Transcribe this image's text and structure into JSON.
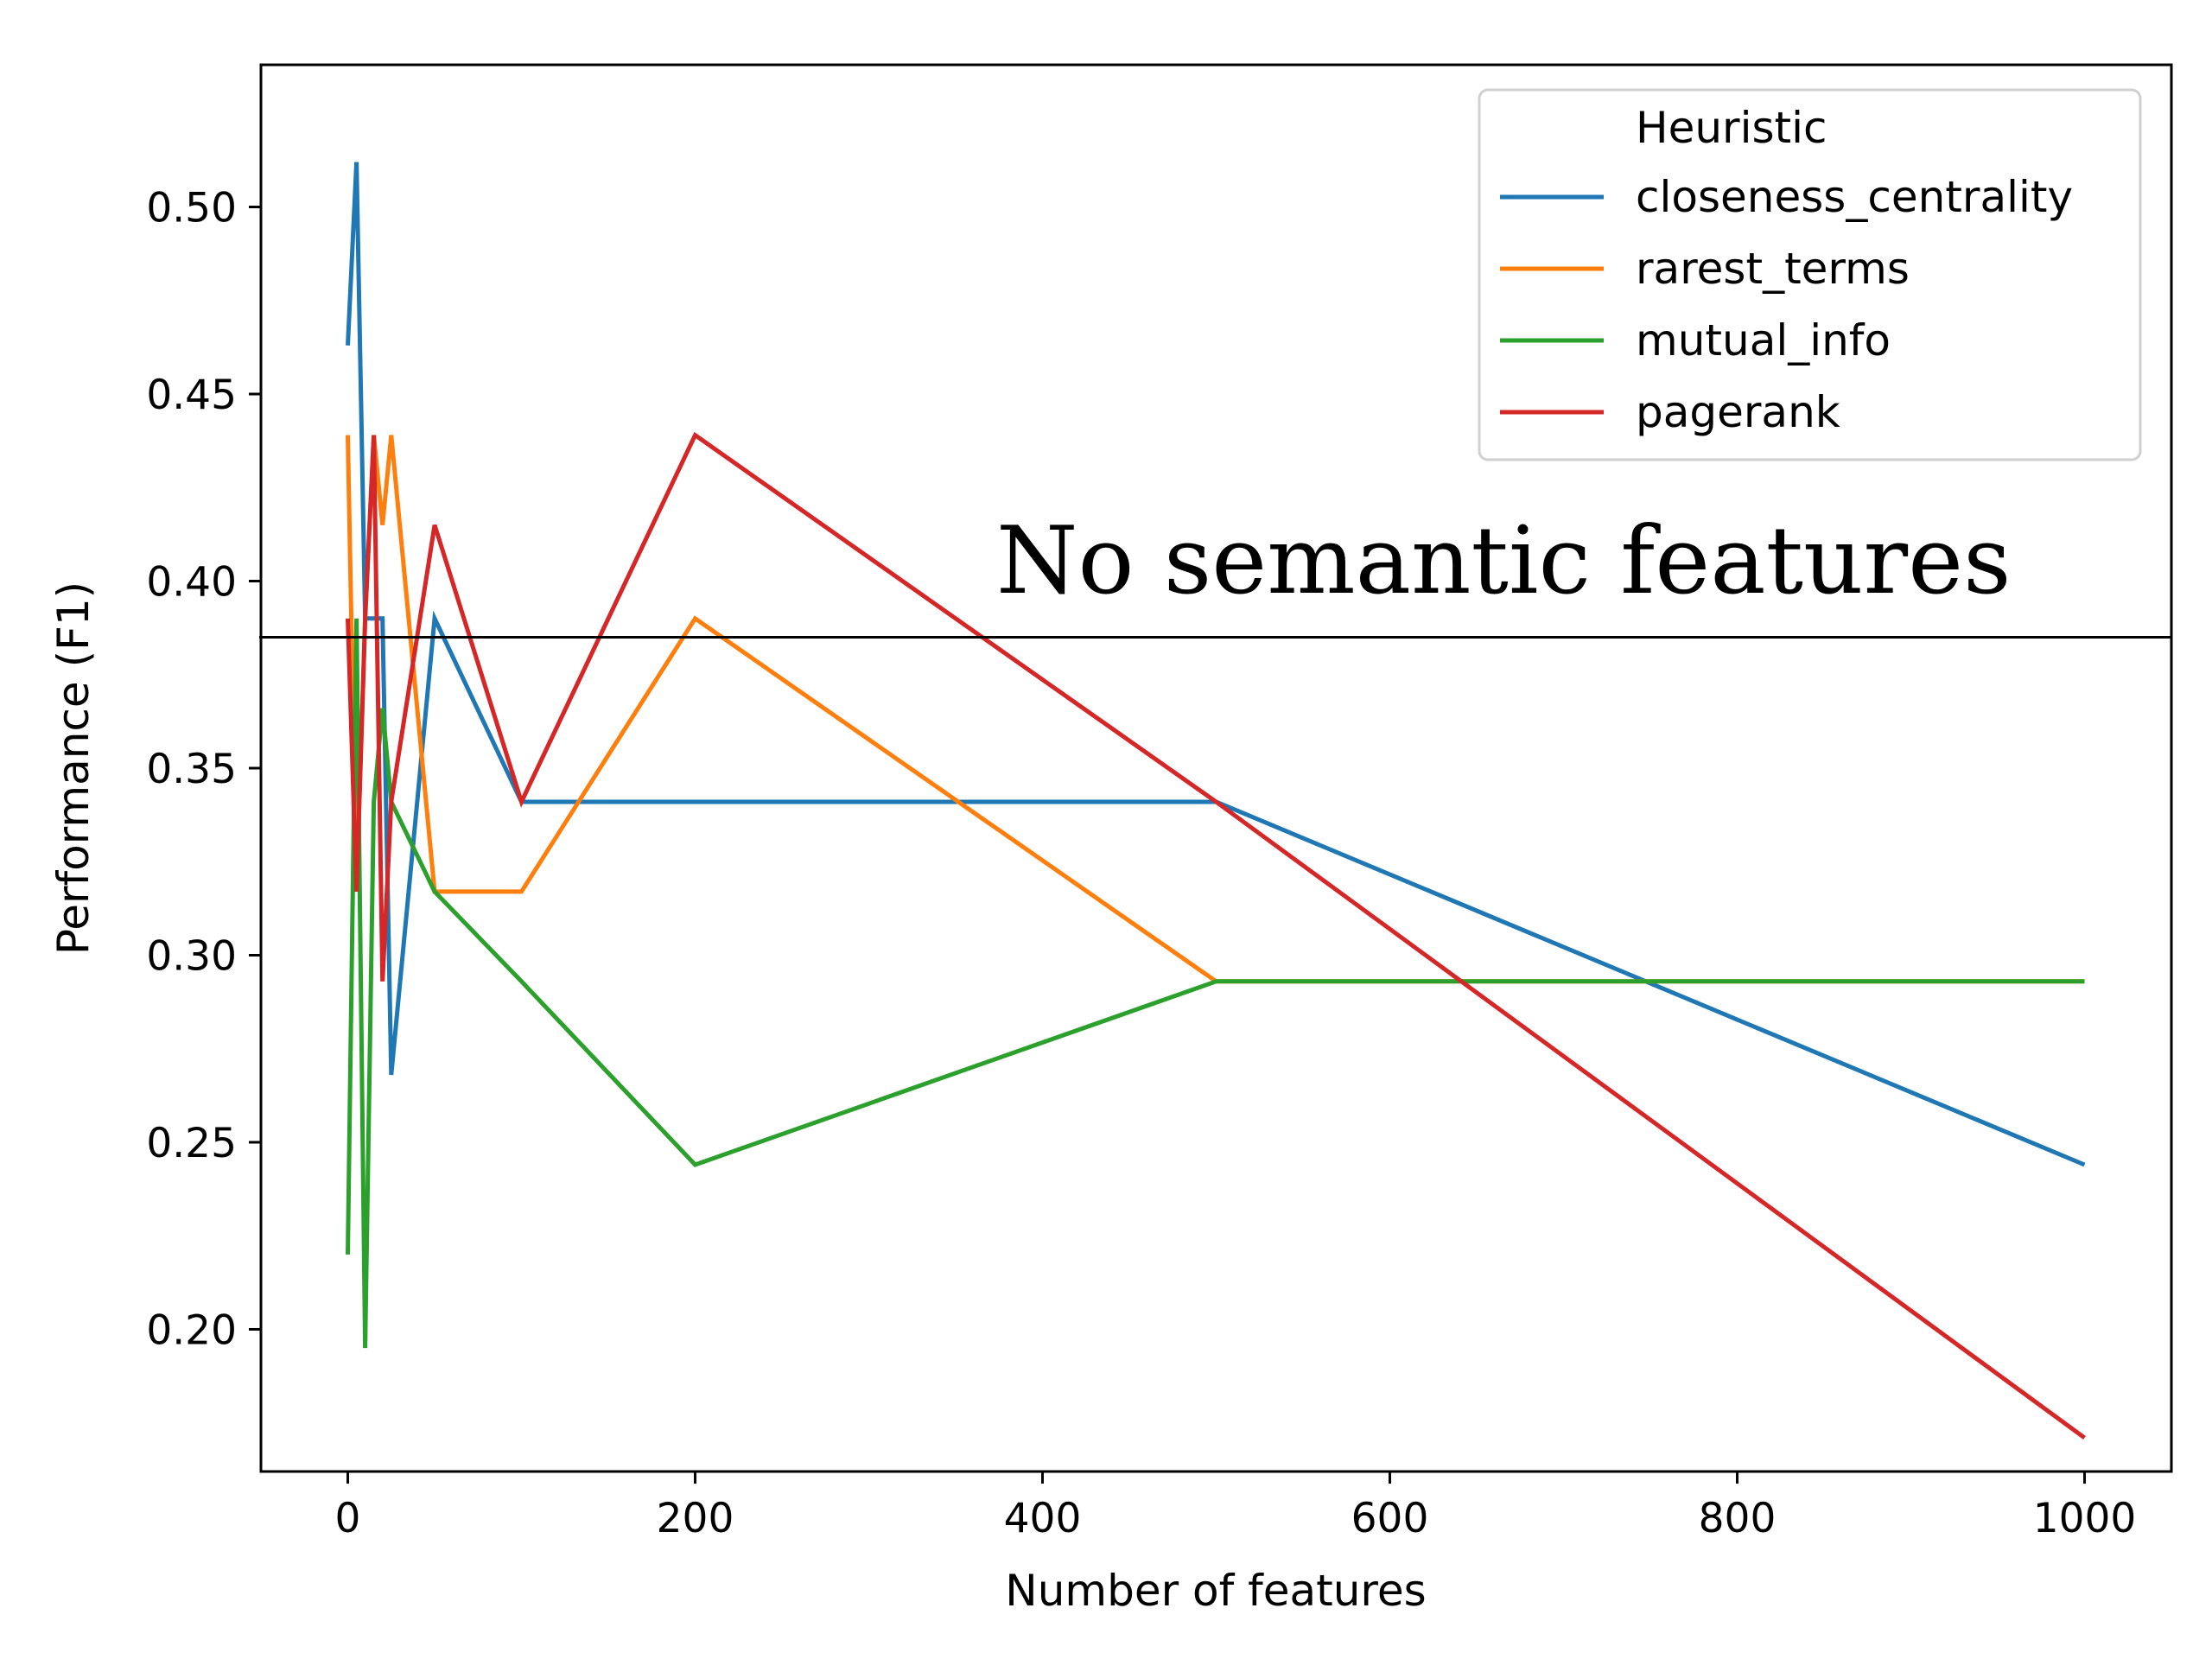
{
  "chart_data": {
    "type": "line",
    "title": "",
    "xlabel": "Number of features",
    "ylabel": "Performance (F1)",
    "xlim": [
      -50,
      1050
    ],
    "ylim": [
      0.162,
      0.538
    ],
    "xticks": [
      0,
      200,
      400,
      600,
      800,
      1000
    ],
    "xtick_labels": [
      "0",
      "200",
      "400",
      "600",
      "800",
      "1000"
    ],
    "yticks": [
      0.2,
      0.25,
      0.3,
      0.35,
      0.4,
      0.45,
      0.5
    ],
    "ytick_labels": [
      "0.20",
      "0.25",
      "0.30",
      "0.35",
      "0.40",
      "0.45",
      "0.50"
    ],
    "grid": false,
    "legend": {
      "title": "Heuristic",
      "placement": "top-right"
    },
    "series": [
      {
        "name": "closeness_centrality",
        "color": "#1f77b4",
        "x": [
          0,
          5,
          10,
          15,
          20,
          25,
          50,
          100,
          200,
          500,
          1000
        ],
        "y": [
          0.463,
          0.512,
          0.39,
          0.39,
          0.39,
          0.268,
          0.39,
          0.341,
          0.341,
          0.341,
          0.244
        ]
      },
      {
        "name": "rarest_terms",
        "color": "#ff7f0e",
        "x": [
          0,
          5,
          10,
          15,
          20,
          25,
          50,
          100,
          200,
          500,
          1000
        ],
        "y": [
          0.439,
          0.317,
          0.39,
          0.439,
          0.415,
          0.439,
          0.317,
          0.317,
          0.39,
          0.293,
          0.293
        ]
      },
      {
        "name": "mutual_info",
        "color": "#2ca02c",
        "x": [
          0,
          5,
          10,
          15,
          20,
          25,
          50,
          100,
          200,
          500,
          1000
        ],
        "y": [
          0.22,
          0.39,
          0.195,
          0.341,
          0.366,
          0.341,
          0.317,
          0.293,
          0.244,
          0.293,
          0.293
        ]
      },
      {
        "name": "pagerank",
        "color": "#d62728",
        "x": [
          0,
          5,
          10,
          15,
          20,
          25,
          50,
          100,
          200,
          500,
          1000
        ],
        "y": [
          0.39,
          0.317,
          0.39,
          0.439,
          0.293,
          0.341,
          0.415,
          0.341,
          0.439,
          0.341,
          0.171
        ]
      }
    ],
    "reference_line": {
      "y": 0.385,
      "label": "No semantic features",
      "color": "#000000"
    }
  }
}
